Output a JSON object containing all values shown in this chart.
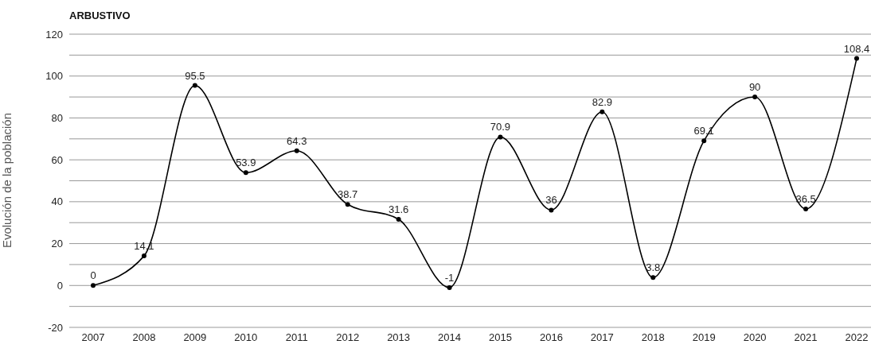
{
  "chart_data": {
    "type": "line",
    "title": "ARBUSTIVO",
    "ylabel": "Evolución de la población",
    "categories": [
      "2007",
      "2008",
      "2009",
      "2010",
      "2011",
      "2012",
      "2013",
      "2014",
      "2015",
      "2016",
      "2017",
      "2018",
      "2019",
      "2020",
      "2021",
      "2022"
    ],
    "series": [
      {
        "color": "#000000",
        "values": [
          0,
          14.1,
          95.5,
          53.9,
          64.3,
          38.7,
          31.6,
          -1,
          70.9,
          36,
          82.9,
          3.8,
          69.1,
          90,
          36.5,
          108.4
        ]
      }
    ],
    "ylim": [
      -20,
      120
    ],
    "yticks": [
      -20,
      {
        "value": -10,
        "label": null
      },
      0,
      {
        "value": 10,
        "label": null
      },
      20,
      {
        "value": 30,
        "label": null
      },
      40,
      {
        "value": 50,
        "label": null
      },
      60,
      {
        "value": 70,
        "label": null
      },
      80,
      {
        "value": 90,
        "label": null
      },
      100,
      {
        "value": 110,
        "label": null
      },
      120
    ],
    "grid": "y",
    "marker": "circle",
    "line_style": "solid",
    "data_labels": true
  }
}
